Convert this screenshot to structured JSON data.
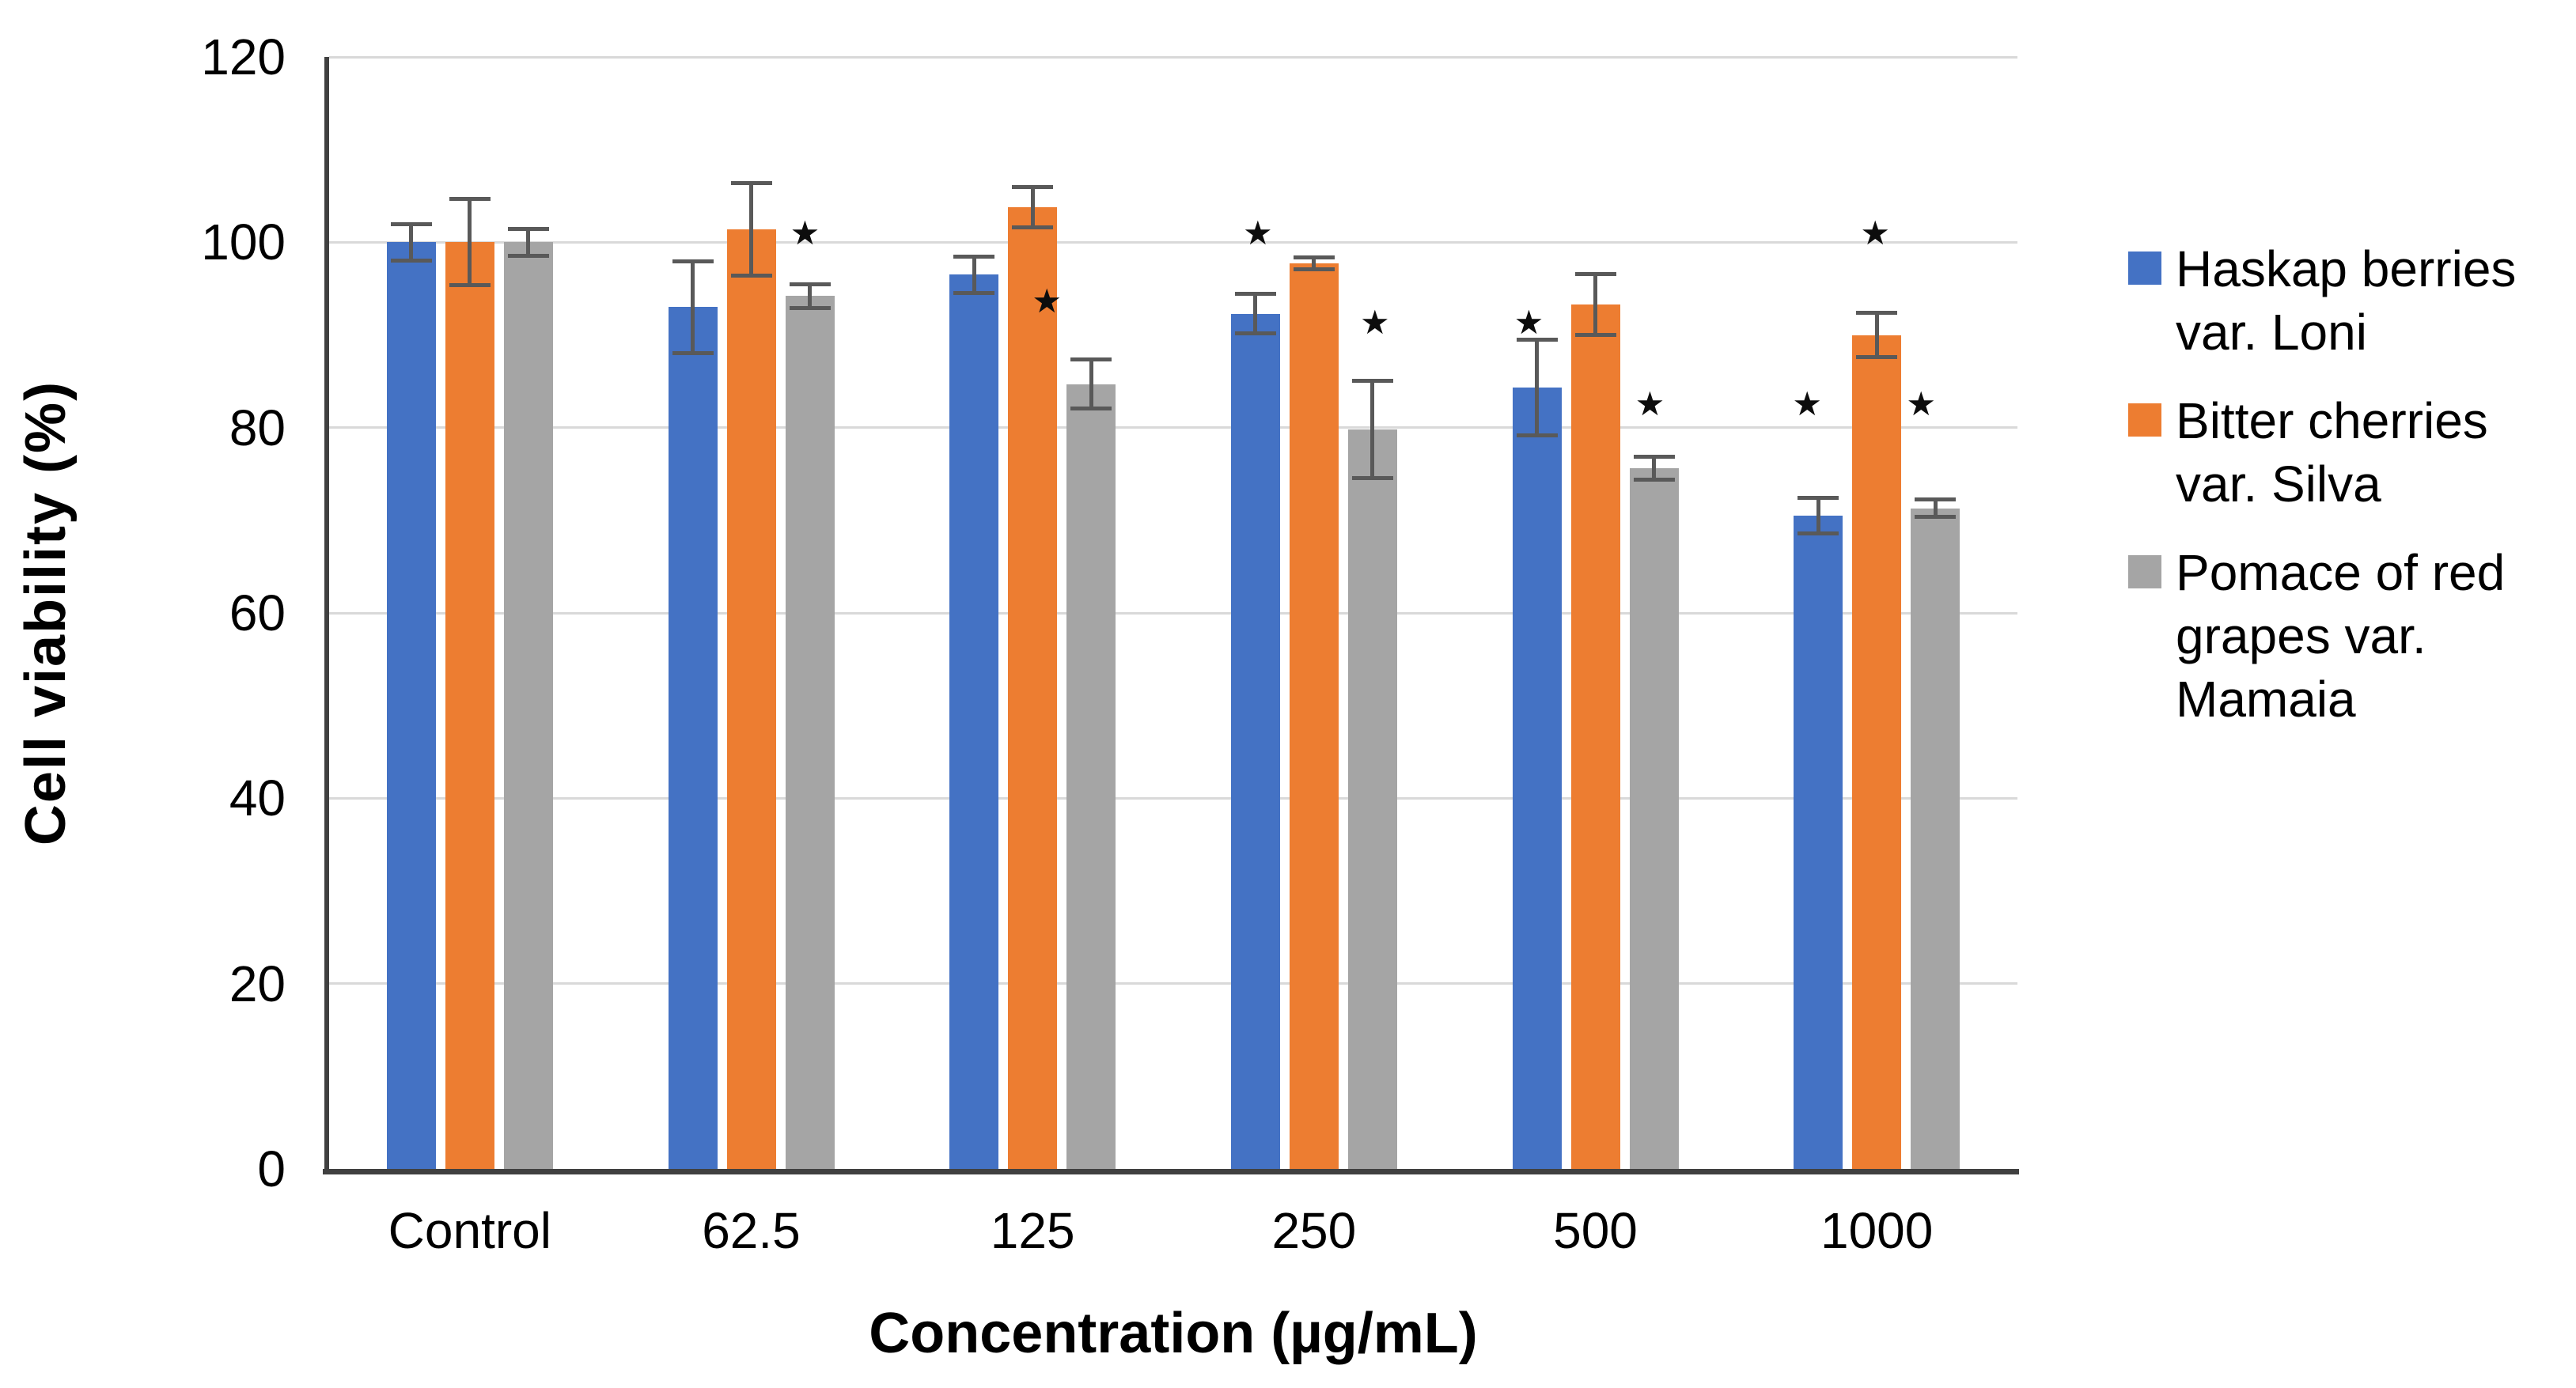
{
  "chart_data": {
    "type": "bar",
    "title": "",
    "xlabel": "Concentration (µg/mL)",
    "ylabel": "Cell viability (%)",
    "ylim": [
      0,
      120
    ],
    "ytick_step": 20,
    "yticks": [
      120,
      100,
      80,
      60,
      40,
      20,
      0
    ],
    "categories": [
      "Control",
      "62.5",
      "125",
      "250",
      "500",
      "1000"
    ],
    "grid": true,
    "legend_position": "right",
    "sig_marker_glyph": "★",
    "sig_marker_meaning": "*",
    "series": [
      {
        "name": "Haskap berries var. Loni",
        "color": "#4472C4",
        "values": [
          100,
          93,
          96.5,
          92.3,
          84.3,
          70.5
        ],
        "errors": [
          2,
          5,
          2,
          2.2,
          5.2,
          2
        ],
        "sig": [
          null,
          null,
          null,
          {
            "y": 101,
            "dx": 3
          },
          {
            "y": 91.3,
            "dx": -10
          },
          {
            "y": 82.5,
            "dx": -14
          }
        ]
      },
      {
        "name": "Bitter cherries var. Silva",
        "color": "#ED7D31",
        "values": [
          100,
          101.4,
          103.8,
          97.7,
          93.3,
          90
        ],
        "errors": [
          4.7,
          5,
          2.2,
          0.7,
          3.3,
          2.4
        ],
        "sig": [
          null,
          null,
          null,
          null,
          null,
          {
            "y": 101,
            "dx": -2
          }
        ]
      },
      {
        "name": "Pomace of red grapes var. Mamaia",
        "color": "#A5A5A5",
        "values": [
          100,
          94.2,
          84.7,
          79.8,
          75.6,
          71.3
        ],
        "errors": [
          1.5,
          1.3,
          2.7,
          5.3,
          1.3,
          1
        ],
        "sig": [
          null,
          {
            "y": 101,
            "dx": -6
          },
          {
            "y": 93.6,
            "dx": -56
          },
          {
            "y": 91.3,
            "dx": 3
          },
          {
            "y": 82.5,
            "dx": -5
          },
          {
            "y": 82.5,
            "dx": -18
          }
        ]
      }
    ],
    "colors": {
      "axis": "#404040",
      "gridline": "#D9D9D9",
      "error_bar": "#595959",
      "text": "#000000",
      "background": "#FFFFFF"
    }
  }
}
